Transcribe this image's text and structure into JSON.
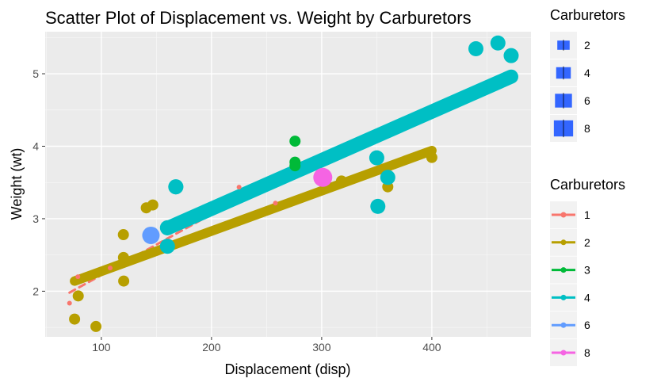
{
  "chart_data": {
    "type": "scatter",
    "title": "Scatter Plot of Displacement vs. Weight by Carburetors",
    "xlabel": "Displacement (disp)",
    "ylabel": "Weight (wt)",
    "xlim": [
      49,
      490
    ],
    "ylim": [
      1.37,
      5.58
    ],
    "xticks": [
      100,
      200,
      300,
      400
    ],
    "yticks": [
      2,
      3,
      4,
      5
    ],
    "grid": true,
    "legend_size": {
      "title": "Carburetors",
      "entries": [
        "2",
        "4",
        "6",
        "8"
      ],
      "color": "#3366FF"
    },
    "legend_color": {
      "title": "Carburetors",
      "entries": [
        "1",
        "2",
        "3",
        "4",
        "6",
        "8"
      ]
    },
    "series": [
      {
        "name": "1",
        "color": "#F8766D",
        "points": [
          [
            108,
            2.32
          ],
          [
            258,
            3.215
          ],
          [
            225,
            3.435
          ],
          [
            146.7,
            3.19
          ],
          [
            140.8,
            3.15
          ],
          [
            78.7,
            2.2
          ],
          [
            71.1,
            1.835
          ]
        ],
        "fit": [
          [
            71.1,
            1.98
          ],
          [
            258,
            3.55
          ]
        ]
      },
      {
        "name": "2",
        "color": "#B79F00",
        "points": [
          [
            360,
            3.44
          ],
          [
            146.7,
            3.19
          ],
          [
            140.8,
            3.15
          ],
          [
            75.7,
            1.615
          ],
          [
            120.1,
            2.465
          ],
          [
            318,
            3.52
          ],
          [
            304,
            3.435
          ],
          [
            79,
            1.935
          ],
          [
            120.3,
            2.14
          ],
          [
            95.1,
            1.513
          ],
          [
            400,
            3.845
          ],
          [
            120,
            2.78
          ]
        ],
        "fit": [
          [
            75.7,
            2.14
          ],
          [
            400,
            3.94
          ]
        ]
      },
      {
        "name": "3",
        "color": "#00BA38",
        "points": [
          [
            275.8,
            4.07
          ],
          [
            275.8,
            3.73
          ],
          [
            275.8,
            3.78
          ]
        ],
        "fit": null
      },
      {
        "name": "4",
        "color": "#00BFC4",
        "points": [
          [
            160,
            2.62
          ],
          [
            160,
            2.875
          ],
          [
            360,
            3.57
          ],
          [
            167.6,
            3.44
          ],
          [
            167.6,
            3.44
          ],
          [
            472,
            5.25
          ],
          [
            460,
            5.424
          ],
          [
            440,
            5.345
          ],
          [
            350,
            3.84
          ],
          [
            351,
            3.17
          ]
        ],
        "fit": [
          [
            160,
            2.87
          ],
          [
            472,
            4.96
          ]
        ]
      },
      {
        "name": "6",
        "color": "#619CFF",
        "points": [
          [
            145,
            2.77
          ]
        ],
        "fit": null
      },
      {
        "name": "8",
        "color": "#F564E3",
        "points": [
          [
            301,
            3.57
          ]
        ],
        "fit": null
      }
    ]
  }
}
